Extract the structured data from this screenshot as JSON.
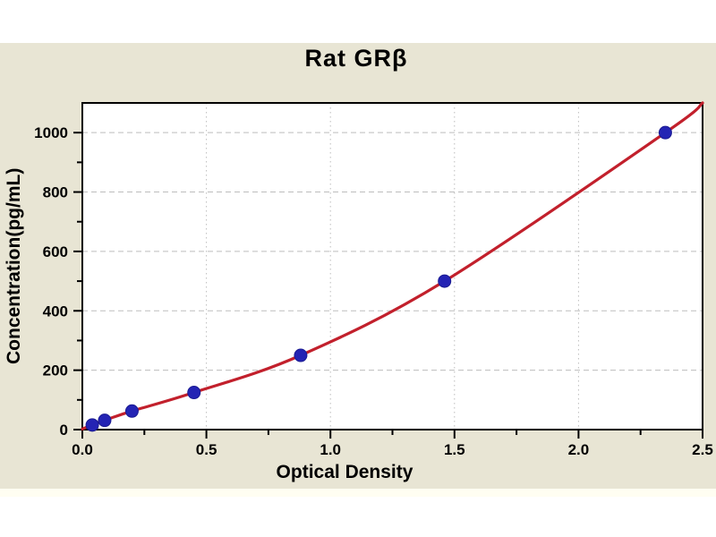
{
  "title": "Rat GRβ",
  "colors": {
    "page_bg": "#ffffff",
    "band_bg": "#e8e5d4",
    "plot_bg": "#ffffff",
    "frame": "#000000",
    "grid": "#bdbdbd",
    "curve": "#c2202c",
    "marker": "#2424b4",
    "text": "#000000"
  },
  "chart_data": {
    "type": "scatter",
    "title": "Rat GRβ",
    "xlabel": "Optical Density",
    "ylabel": "Concentration(pg/mL)",
    "xlim": [
      0,
      2.5
    ],
    "ylim": [
      0,
      1100
    ],
    "x_major_ticks": [
      0,
      0.5,
      1.0,
      1.5,
      2.0,
      2.5
    ],
    "x_tick_labels": [
      "0.0",
      "0.5",
      "1.0",
      "1.5",
      "2.0",
      "2.5"
    ],
    "x_minor_step": 0.25,
    "y_major_ticks": [
      0,
      200,
      400,
      600,
      800,
      1000
    ],
    "y_tick_labels": [
      "0",
      "200",
      "400",
      "600",
      "800",
      "1000"
    ],
    "y_minor_step": 100,
    "grid": {
      "horizontal": "dashed",
      "vertical": "dotted",
      "color": "#bdbdbd",
      "on": true
    },
    "legend": "none",
    "points": {
      "name": "standard-points",
      "x": [
        0.04,
        0.09,
        0.2,
        0.45,
        0.88,
        1.46,
        2.35
      ],
      "y": [
        15.6,
        31.2,
        62.5,
        125,
        250,
        500,
        1000
      ],
      "marker": "circle",
      "marker_color": "#2424b4"
    },
    "fit_curve": {
      "name": "standard-fit-curve",
      "color": "#c2202c",
      "x": [
        0,
        0.04,
        0.09,
        0.2,
        0.45,
        0.88,
        1.46,
        2.35,
        2.5
      ],
      "y": [
        2,
        15.6,
        31.2,
        62.5,
        125,
        250,
        500,
        1000,
        1100
      ]
    }
  }
}
